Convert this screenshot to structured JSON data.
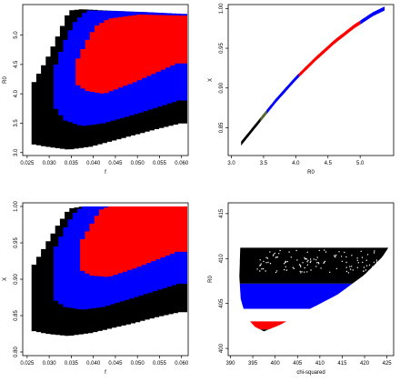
{
  "colors": {
    "outer": "#000000",
    "middle": "#0000ff",
    "inner": "#ff0000",
    "curve_low": "#556b2f"
  },
  "chart_data": [
    {
      "id": "p1",
      "type": "heatmap",
      "xlabel": "f",
      "ylabel": "R0",
      "xlim": [
        0.024,
        0.0615
      ],
      "ylim": [
        2.95,
        5.52
      ],
      "xticks": [
        "0.025",
        "0.030",
        "0.035",
        "0.040",
        "0.045",
        "0.050",
        "0.055",
        "0.060"
      ],
      "yticks": [
        "3.0",
        "3.5",
        "4.0",
        "4.5",
        "5.0"
      ],
      "regions": [
        {
          "name": "black",
          "top": [
            [
              0.026,
              4.2
            ],
            [
              0.029,
              4.6
            ],
            [
              0.0315,
              5.0
            ],
            [
              0.034,
              5.42
            ],
            [
              0.037,
              5.44
            ],
            [
              0.042,
              5.42
            ],
            [
              0.048,
              5.4
            ],
            [
              0.054,
              5.38
            ],
            [
              0.0605,
              5.35
            ]
          ],
          "bottom": [
            [
              0.026,
              3.15
            ],
            [
              0.03,
              3.1
            ],
            [
              0.035,
              3.05
            ],
            [
              0.04,
              3.1
            ],
            [
              0.045,
              3.2
            ],
            [
              0.05,
              3.3
            ],
            [
              0.055,
              3.4
            ],
            [
              0.0605,
              3.5
            ]
          ]
        },
        {
          "name": "blue",
          "top": [
            [
              0.031,
              4.5
            ],
            [
              0.033,
              4.9
            ],
            [
              0.035,
              5.2
            ],
            [
              0.038,
              5.42
            ],
            [
              0.045,
              5.41
            ],
            [
              0.052,
              5.39
            ],
            [
              0.0605,
              5.36
            ]
          ],
          "bottom": [
            [
              0.031,
              3.85
            ],
            [
              0.034,
              3.55
            ],
            [
              0.038,
              3.45
            ],
            [
              0.043,
              3.5
            ],
            [
              0.05,
              3.65
            ],
            [
              0.0605,
              3.9
            ]
          ]
        },
        {
          "name": "red",
          "top": [
            [
              0.036,
              4.6
            ],
            [
              0.038,
              4.9
            ],
            [
              0.04,
              5.15
            ],
            [
              0.043,
              5.28
            ],
            [
              0.05,
              5.35
            ],
            [
              0.0605,
              5.33
            ]
          ],
          "bottom": [
            [
              0.036,
              4.2
            ],
            [
              0.039,
              4.05
            ],
            [
              0.043,
              4.0
            ],
            [
              0.05,
              4.2
            ],
            [
              0.0605,
              4.55
            ]
          ]
        }
      ]
    },
    {
      "id": "p2",
      "type": "scatter",
      "xlabel": "R0",
      "ylabel": "X",
      "xlim": [
        2.95,
        5.52
      ],
      "ylim": [
        0.815,
        1.005
      ],
      "xticks": [
        "3.0",
        "3.5",
        "4.0",
        "4.5",
        "5.0"
      ],
      "yticks": [
        "0.85",
        "0.90",
        "0.95",
        "1.00"
      ],
      "band": [
        [
          3.15,
          0.83
        ],
        [
          3.3,
          0.845
        ],
        [
          3.5,
          0.865
        ],
        [
          3.7,
          0.885
        ],
        [
          4.0,
          0.912
        ],
        [
          4.3,
          0.936
        ],
        [
          4.6,
          0.958
        ],
        [
          4.9,
          0.977
        ],
        [
          5.2,
          0.993
        ],
        [
          5.38,
          1.0
        ]
      ],
      "segments": [
        {
          "name": "black",
          "from": 3.15,
          "to": 3.55
        },
        {
          "name": "olive",
          "from": 3.45,
          "to": 3.62
        },
        {
          "name": "blue",
          "from": 3.55,
          "to": 4.05
        },
        {
          "name": "red",
          "from": 4.05,
          "to": 5.0
        },
        {
          "name": "blue",
          "from": 5.0,
          "to": 5.38
        }
      ]
    },
    {
      "id": "p3",
      "type": "heatmap",
      "xlabel": "f",
      "ylabel": "X",
      "xlim": [
        0.024,
        0.0615
      ],
      "ylim": [
        0.795,
        1.005
      ],
      "xticks": [
        "0.025",
        "0.030",
        "0.035",
        "0.040",
        "0.045",
        "0.050",
        "0.055",
        "0.060"
      ],
      "yticks": [
        "0.80",
        "0.85",
        "0.90",
        "0.95",
        "1.00"
      ],
      "regions": [
        {
          "name": "black",
          "top": [
            [
              0.026,
              0.92
            ],
            [
              0.029,
              0.95
            ],
            [
              0.0315,
              0.975
            ],
            [
              0.034,
              0.997
            ],
            [
              0.037,
              1.0
            ],
            [
              0.0605,
              1.0
            ]
          ],
          "bottom": [
            [
              0.026,
              0.83
            ],
            [
              0.03,
              0.825
            ],
            [
              0.035,
              0.822
            ],
            [
              0.04,
              0.826
            ],
            [
              0.045,
              0.833
            ],
            [
              0.05,
              0.84
            ],
            [
              0.055,
              0.848
            ],
            [
              0.0605,
              0.855
            ]
          ]
        },
        {
          "name": "blue",
          "top": [
            [
              0.031,
              0.945
            ],
            [
              0.033,
              0.97
            ],
            [
              0.035,
              0.99
            ],
            [
              0.037,
              1.0
            ],
            [
              0.0605,
              1.0
            ]
          ],
          "bottom": [
            [
              0.031,
              0.875
            ],
            [
              0.034,
              0.862
            ],
            [
              0.038,
              0.858
            ],
            [
              0.043,
              0.862
            ],
            [
              0.05,
              0.875
            ],
            [
              0.0605,
              0.895
            ]
          ]
        },
        {
          "name": "red",
          "top": [
            [
              0.037,
              0.955
            ],
            [
              0.039,
              0.975
            ],
            [
              0.041,
              0.995
            ],
            [
              0.043,
              1.0
            ],
            [
              0.0605,
              1.0
            ]
          ],
          "bottom": [
            [
              0.037,
              0.915
            ],
            [
              0.04,
              0.905
            ],
            [
              0.044,
              0.903
            ],
            [
              0.05,
              0.915
            ],
            [
              0.0605,
              0.94
            ]
          ]
        }
      ]
    },
    {
      "id": "p4",
      "type": "scatter",
      "xlabel": "chi-squared",
      "ylabel": "R0",
      "xlim": [
        389.5,
        426.5
      ],
      "ylim": [
        399.2,
        416.2
      ],
      "xticks": [
        "390",
        "395",
        "400",
        "405",
        "410",
        "415",
        "420",
        "425"
      ],
      "yticks": [
        "400",
        "405",
        "410",
        "415"
      ],
      "segments": [
        {
          "name": "black",
          "from": 407.2,
          "to": 411.2
        },
        {
          "name": "blue",
          "from": 404.4,
          "to": 407.2
        },
        {
          "name": "white",
          "from": 403.0,
          "to": 404.4
        },
        {
          "name": "red",
          "from": 402.1,
          "to": 403.0
        },
        {
          "name": "black",
          "from": 401.9,
          "to": 402.1
        }
      ],
      "left_edge": [
        [
          392.2,
          411.2
        ],
        [
          392.0,
          408.0
        ],
        [
          392.3,
          405.5
        ],
        [
          393.5,
          403.5
        ],
        [
          395.5,
          402.4
        ],
        [
          397.5,
          401.9
        ]
      ],
      "right_edge": [
        [
          425.3,
          411.2
        ],
        [
          424.0,
          410.2
        ],
        [
          420.0,
          408.2
        ],
        [
          414.0,
          406.0
        ],
        [
          407.0,
          404.2
        ],
        [
          401.0,
          402.6
        ],
        [
          397.5,
          401.9
        ]
      ]
    }
  ]
}
